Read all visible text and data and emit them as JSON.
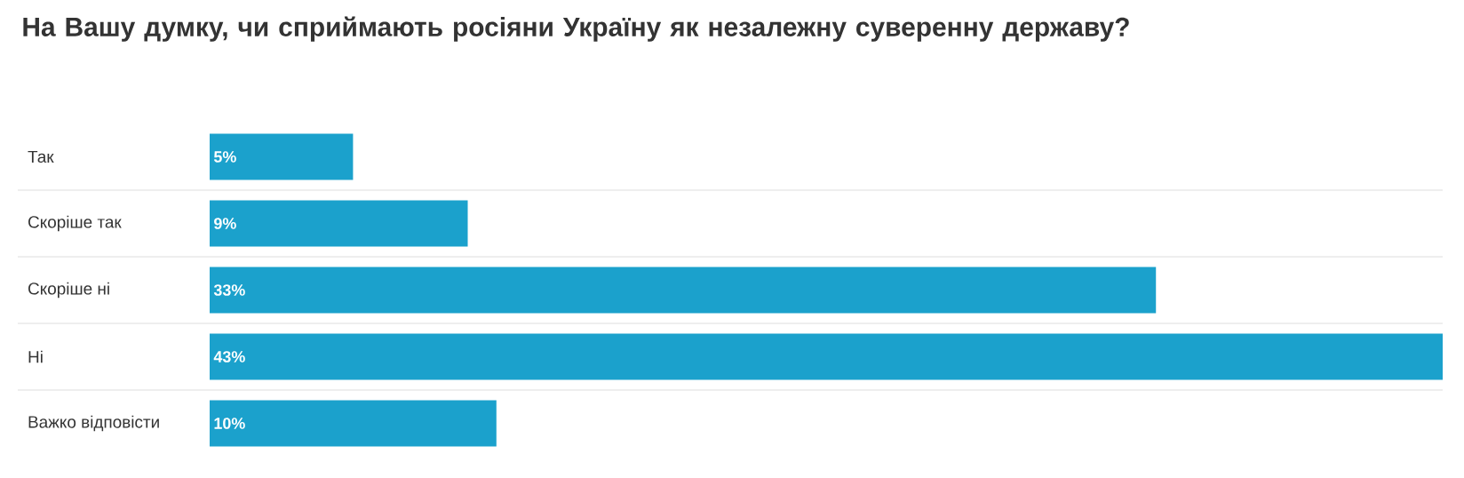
{
  "chart_data": {
    "type": "bar",
    "orientation": "horizontal",
    "title": "На Вашу думку, чи сприймають росіяни Україну як незалежну суверенну державу?",
    "categories": [
      "Так",
      "Скоріше так",
      "Скоріше ні",
      "Ні",
      "Важко відповісти"
    ],
    "values": [
      5,
      9,
      33,
      43,
      10
    ],
    "value_labels": [
      "5%",
      "9%",
      "33%",
      "43%",
      "10%"
    ],
    "color": "#1ba1cc",
    "grid": "y"
  }
}
